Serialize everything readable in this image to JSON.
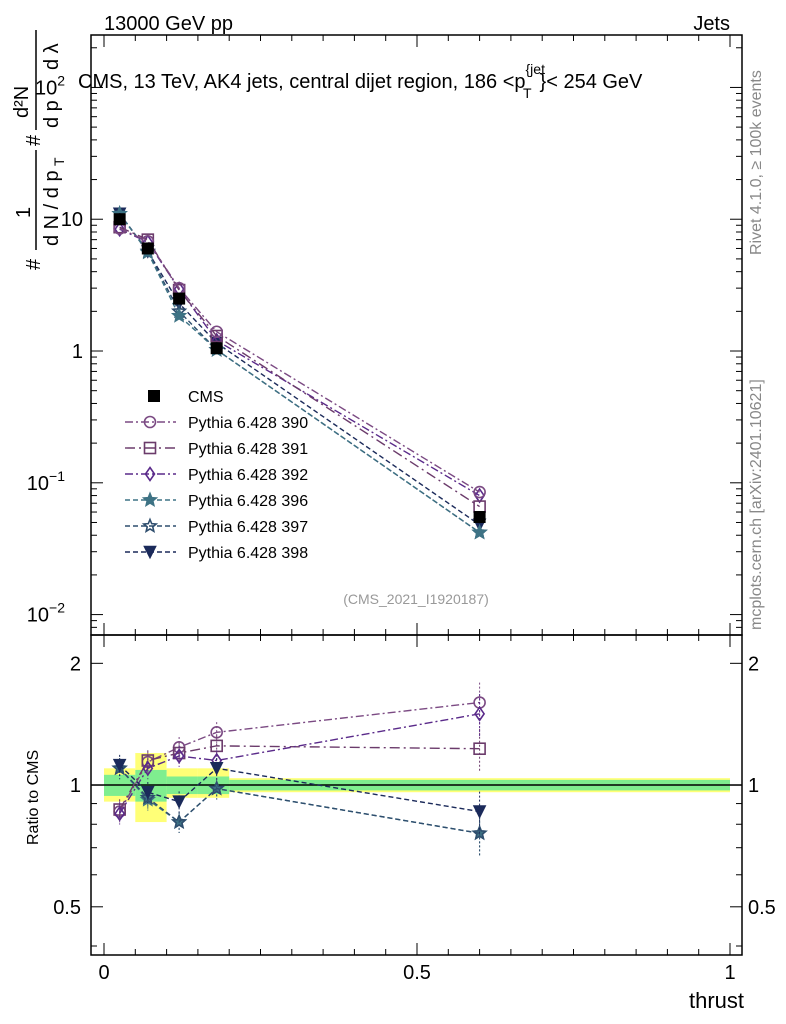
{
  "header": {
    "energy_label": "13000 GeV pp",
    "category_label": "Jets",
    "plot_title": "CMS, 13 TeV, AK4 jets, central dijet region, 186 <p",
    "plot_title_sup": "{jet",
    "plot_title_sub": "T",
    "plot_title_end": "}< 254 GeV",
    "analysis_id": "(CMS_2021_I1920187)",
    "rivet_label": "Rivet 4.1.0, ≥ 100k events",
    "source_label": "mcplots.cern.ch [arXiv:2401.10621]"
  },
  "chart_data": [
    {
      "type": "line",
      "panel": "main",
      "title": "CMS, 13 TeV, AK4 jets, central dijet region, 186 <p_T^{jet}< 254 GeV",
      "xlabel": "thrust",
      "ylabel": "1/dN/dp_T  d²N/dp_T dλ",
      "ylabel_parts": {
        "one": "1",
        "hash": "#",
        "dn": "d N / d p",
        "t": "T",
        "d2n": "d²N",
        "dpt": "d p",
        "dl": "d λ"
      },
      "yscale": "log",
      "xlim": [
        0,
        1
      ],
      "ylim": [
        0.007,
        250
      ],
      "yticks": [
        {
          "value": 0.01,
          "base": "10",
          "exp": "−2"
        },
        {
          "value": 0.1,
          "base": "10",
          "exp": "−1"
        },
        {
          "value": 1,
          "base": "1",
          "exp": ""
        },
        {
          "value": 10,
          "base": "10",
          "exp": ""
        },
        {
          "value": 100,
          "base": "10",
          "exp": "2"
        }
      ],
      "x": [
        0.025,
        0.07,
        0.12,
        0.18,
        0.6
      ],
      "series": [
        {
          "name": "CMS",
          "color": "#000000",
          "marker": "filled-square",
          "dash": "none",
          "values": [
            10.0,
            6.0,
            2.5,
            1.05,
            0.055
          ]
        },
        {
          "name": "Pythia 6.428 390",
          "color": "#7b4a83",
          "marker": "open-circle",
          "dash": "8,3,2,3",
          "values": [
            8.5,
            6.8,
            3.0,
            1.4,
            0.085
          ]
        },
        {
          "name": "Pythia 6.428 391",
          "color": "#6b3b6b",
          "marker": "open-square",
          "dash": "10,4,2,4",
          "values": [
            8.7,
            7.0,
            2.9,
            1.3,
            0.066
          ]
        },
        {
          "name": "Pythia 6.428 392",
          "color": "#5a2a8a",
          "marker": "open-diamond",
          "dash": "8,3,2,3",
          "values": [
            8.4,
            6.7,
            2.95,
            1.2,
            0.08
          ]
        },
        {
          "name": "Pythia 6.428 396",
          "color": "#3e7385",
          "marker": "filled-star",
          "dash": "5,3",
          "values": [
            11.0,
            5.6,
            1.85,
            1.02,
            0.042
          ]
        },
        {
          "name": "Pythia 6.428 397",
          "color": "#2f4e6e",
          "marker": "open-star",
          "dash": "5,3",
          "values": [
            11.0,
            5.7,
            2.0,
            1.02,
            0.042
          ]
        },
        {
          "name": "Pythia 6.428 398",
          "color": "#1b2a5a",
          "marker": "filled-triangle-down",
          "dash": "5,3",
          "values": [
            11.0,
            5.7,
            2.3,
            1.15,
            0.048
          ]
        }
      ]
    },
    {
      "type": "line",
      "panel": "ratio",
      "xlabel": "thrust",
      "ylabel": "Ratio to CMS",
      "yscale": "log",
      "xlim": [
        0,
        1
      ],
      "ylim": [
        0.38,
        2.35
      ],
      "yticks": [
        {
          "value": 0.5,
          "label": "0.5"
        },
        {
          "value": 1,
          "label": "1"
        },
        {
          "value": 2,
          "label": "2"
        }
      ],
      "xticks": [
        {
          "value": 0,
          "label": "0"
        },
        {
          "value": 0.5,
          "label": "0.5"
        },
        {
          "value": 1,
          "label": "1"
        }
      ],
      "reference_bands": [
        {
          "name": "stat",
          "color": "#7fee8f",
          "bins": [
            [
              0,
              0.05,
              0.94,
              1.06
            ],
            [
              0.05,
              0.1,
              0.91,
              1.09
            ],
            [
              0.1,
              0.15,
              0.95,
              1.05
            ],
            [
              0.15,
              0.2,
              0.95,
              1.05
            ],
            [
              0.2,
              1.0,
              0.97,
              1.03
            ]
          ]
        },
        {
          "name": "syst",
          "color": "#ffff77",
          "bins": [
            [
              0,
              0.05,
              0.91,
              1.1
            ],
            [
              0.05,
              0.1,
              0.81,
              1.2
            ],
            [
              0.1,
              0.15,
              0.93,
              1.1
            ],
            [
              0.15,
              0.2,
              0.93,
              1.1
            ],
            [
              0.2,
              1.0,
              0.96,
              1.04
            ]
          ]
        }
      ],
      "x": [
        0.025,
        0.07,
        0.12,
        0.18,
        0.6
      ],
      "series": [
        {
          "name": "Pythia 6.428 390",
          "color": "#7b4a83",
          "marker": "open-circle",
          "dash": "8,3,2,3",
          "values": [
            0.86,
            1.14,
            1.24,
            1.35,
            1.6
          ]
        },
        {
          "name": "Pythia 6.428 391",
          "color": "#6b3b6b",
          "marker": "open-square",
          "dash": "10,4,2,4",
          "values": [
            0.87,
            1.15,
            1.2,
            1.25,
            1.23
          ]
        },
        {
          "name": "Pythia 6.428 392",
          "color": "#5a2a8a",
          "marker": "open-diamond",
          "dash": "8,3,2,3",
          "values": [
            0.85,
            1.1,
            1.18,
            1.15,
            1.5
          ]
        },
        {
          "name": "Pythia 6.428 396",
          "color": "#3e7385",
          "marker": "filled-star",
          "dash": "5,3",
          "values": [
            1.1,
            0.92,
            0.81,
            0.98,
            0.76
          ]
        },
        {
          "name": "Pythia 6.428 397",
          "color": "#2f4e6e",
          "marker": "open-star",
          "dash": "5,3",
          "values": [
            1.1,
            0.93,
            0.81,
            0.98,
            0.76
          ]
        },
        {
          "name": "Pythia 6.428 398",
          "color": "#1b2a5a",
          "marker": "filled-triangle-down",
          "dash": "5,3",
          "values": [
            1.12,
            0.96,
            0.91,
            1.1,
            0.86
          ]
        }
      ]
    }
  ]
}
